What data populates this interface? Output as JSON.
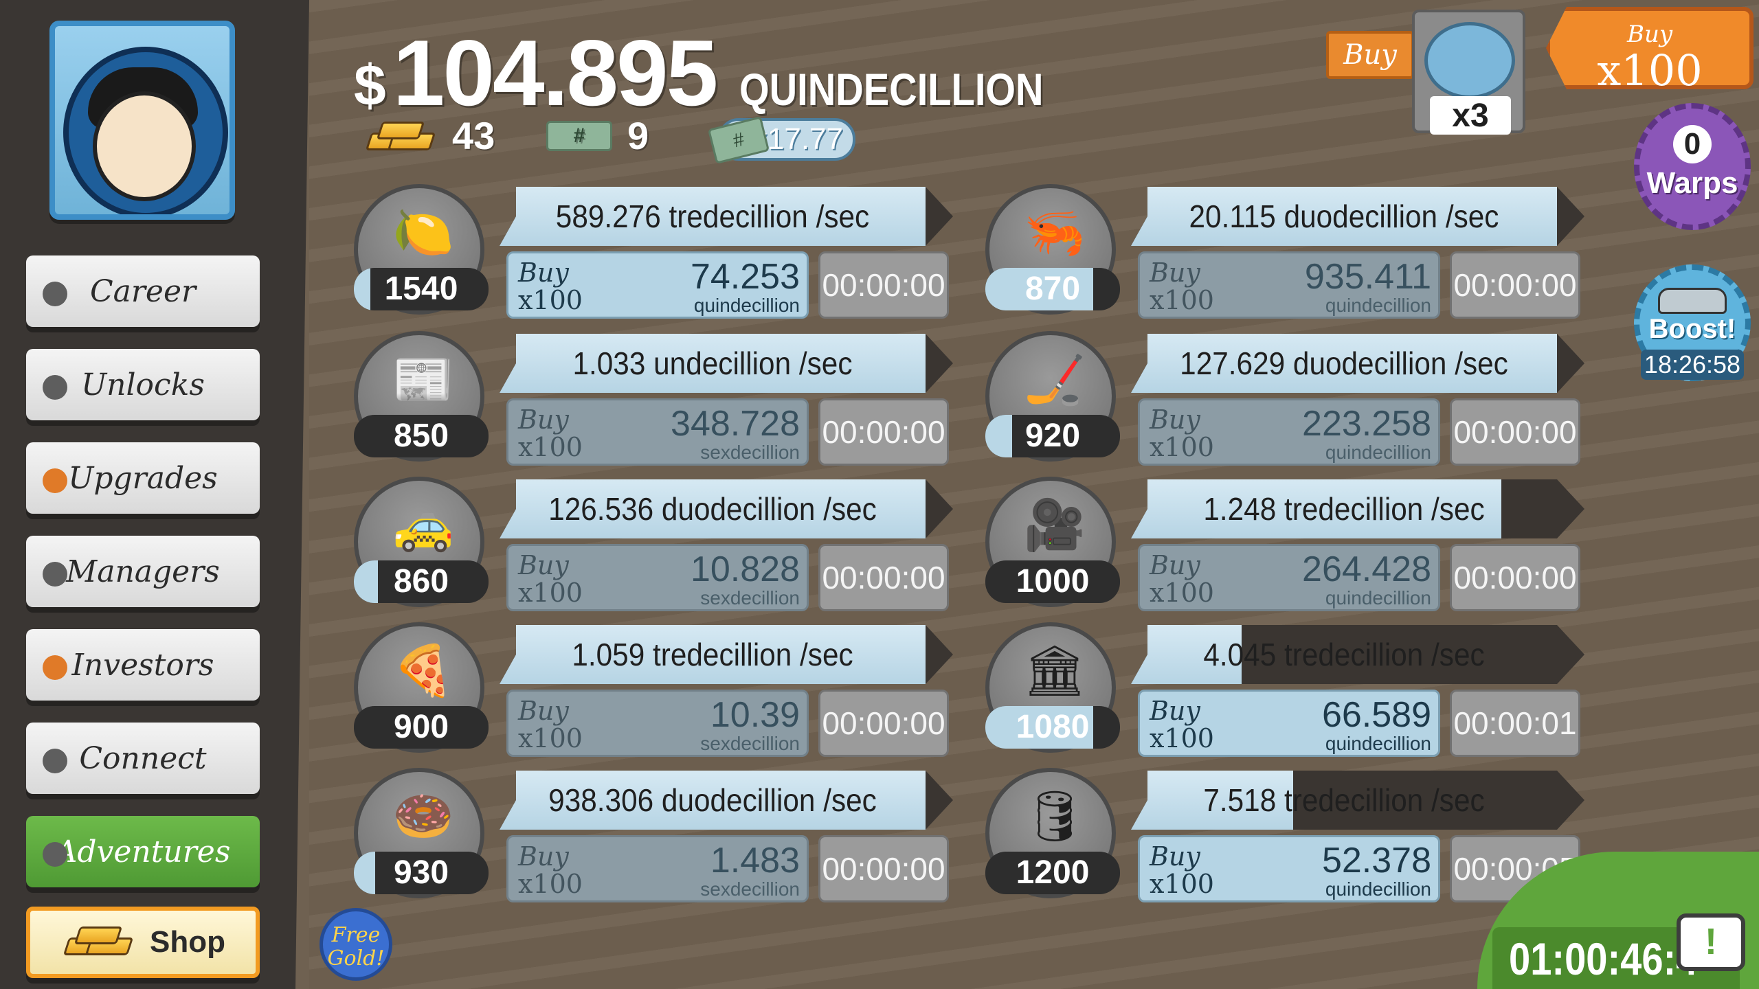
{
  "header": {
    "currency_symbol": "$",
    "money_amount": "104.895",
    "money_unit": "QUINDECILLION",
    "gold_count": "43",
    "megabucks_count": "9",
    "ticket_symbol": "#",
    "multiplier": "x17.77"
  },
  "sidebar": {
    "items": [
      {
        "label": "Career",
        "dot": "gray"
      },
      {
        "label": "Unlocks",
        "dot": "gray"
      },
      {
        "label": "Upgrades",
        "dot": "orange"
      },
      {
        "label": "Managers",
        "dot": "gray"
      },
      {
        "label": "Investors",
        "dot": "orange"
      },
      {
        "label": "Connect",
        "dot": "gray"
      },
      {
        "label": "Adventures",
        "dot": "gray"
      }
    ],
    "shop_label": "Shop",
    "free_gold_label": "Free Gold!"
  },
  "top_right": {
    "buy_label": "Buy",
    "news_mult": "x3",
    "buy_amount_top": "Buy",
    "buy_amount_bottom": "x100",
    "warps_count": "0",
    "warps_label": "Warps",
    "boost_label": "Boost!",
    "boost_time": "18:26:58"
  },
  "businesses_left": [
    {
      "icon": "lemon-icon",
      "glyph": "🍋",
      "count": "1540",
      "progress": 0.12,
      "rate": "589.276 tredecillion /sec",
      "rate_progress": 1.0,
      "buy_top": "Buy",
      "buy_bottom": "x100",
      "cost": "74.253",
      "cost_unit": "quindecillion",
      "timer": "00:00:00",
      "affordable": true
    },
    {
      "icon": "newspaper-icon",
      "glyph": "📰",
      "count": "850",
      "progress": 0.0,
      "rate": "1.033 undecillion /sec",
      "rate_progress": 1.0,
      "buy_top": "Buy",
      "buy_bottom": "x100",
      "cost": "348.728",
      "cost_unit": "sexdecillion",
      "timer": "00:00:00",
      "affordable": false
    },
    {
      "icon": "car-icon",
      "glyph": "🚕",
      "count": "860",
      "progress": 0.18,
      "rate": "126.536 duodecillion /sec",
      "rate_progress": 1.0,
      "buy_top": "Buy",
      "buy_bottom": "x100",
      "cost": "10.828",
      "cost_unit": "sexdecillion",
      "timer": "00:00:00",
      "affordable": false
    },
    {
      "icon": "pizza-icon",
      "glyph": "🍕",
      "count": "900",
      "progress": 0.0,
      "rate": "1.059 tredecillion /sec",
      "rate_progress": 1.0,
      "buy_top": "Buy",
      "buy_bottom": "x100",
      "cost": "10.39",
      "cost_unit": "sexdecillion",
      "timer": "00:00:00",
      "affordable": false
    },
    {
      "icon": "donut-icon",
      "glyph": "🍩",
      "count": "930",
      "progress": 0.16,
      "rate": "938.306 duodecillion /sec",
      "rate_progress": 1.0,
      "buy_top": "Buy",
      "buy_bottom": "x100",
      "cost": "1.483",
      "cost_unit": "sexdecillion",
      "timer": "00:00:00",
      "affordable": false
    }
  ],
  "businesses_right": [
    {
      "icon": "shrimp-icon",
      "glyph": "🦐",
      "count": "870",
      "progress": 0.8,
      "rate": "20.115 duodecillion /sec",
      "rate_progress": 1.0,
      "buy_top": "Buy",
      "buy_bottom": "x100",
      "cost": "935.411",
      "cost_unit": "quindecillion",
      "timer": "00:00:00",
      "affordable": false
    },
    {
      "icon": "hockey-icon",
      "glyph": "🏒",
      "count": "920",
      "progress": 0.2,
      "rate": "127.629 duodecillion /sec",
      "rate_progress": 1.0,
      "buy_top": "Buy",
      "buy_bottom": "x100",
      "cost": "223.258",
      "cost_unit": "quindecillion",
      "timer": "00:00:00",
      "affordable": false
    },
    {
      "icon": "movie-camera-icon",
      "glyph": "🎥",
      "count": "1000",
      "progress": 0.0,
      "rate": "1.248 tredecillion /sec",
      "rate_progress": 0.87,
      "buy_top": "Buy",
      "buy_bottom": "x100",
      "cost": "264.428",
      "cost_unit": "quindecillion",
      "timer": "00:00:00",
      "affordable": false
    },
    {
      "icon": "bank-icon",
      "glyph": "🏛",
      "count": "1080",
      "progress": 0.8,
      "rate": "4.045 tredecillion /sec",
      "rate_progress": 0.26,
      "buy_top": "Buy",
      "buy_bottom": "x100",
      "cost": "66.589",
      "cost_unit": "quindecillion",
      "timer": "00:00:01",
      "affordable": true
    },
    {
      "icon": "oil-rig-icon",
      "glyph": "🛢",
      "count": "1200",
      "progress": 0.0,
      "rate": "7.518 tredecillion /sec",
      "rate_progress": 0.38,
      "buy_top": "Buy",
      "buy_bottom": "x100",
      "cost": "52.378",
      "cost_unit": "quindecillion",
      "timer": "00:00:05",
      "affordable": true
    }
  ],
  "bottom": {
    "session_timer": "01:00:46:4",
    "tv_symbol": "!"
  }
}
